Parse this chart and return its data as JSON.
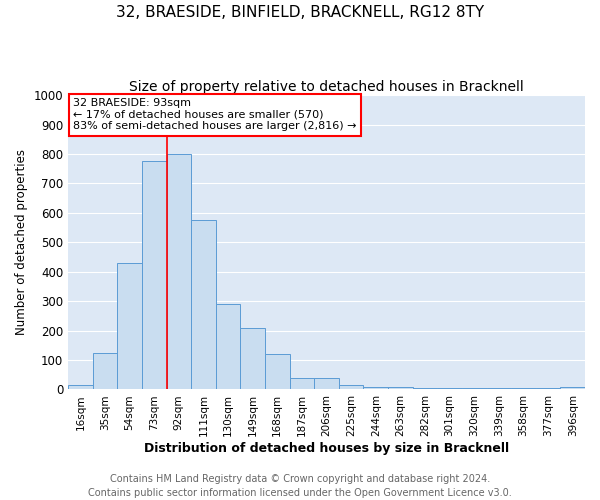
{
  "title": "32, BRAESIDE, BINFIELD, BRACKNELL, RG12 8TY",
  "subtitle": "Size of property relative to detached houses in Bracknell",
  "xlabel": "Distribution of detached houses by size in Bracknell",
  "ylabel": "Number of detached properties",
  "bar_labels": [
    "16sqm",
    "35sqm",
    "54sqm",
    "73sqm",
    "92sqm",
    "111sqm",
    "130sqm",
    "149sqm",
    "168sqm",
    "187sqm",
    "206sqm",
    "225sqm",
    "244sqm",
    "263sqm",
    "282sqm",
    "301sqm",
    "320sqm",
    "339sqm",
    "358sqm",
    "377sqm",
    "396sqm"
  ],
  "bar_values": [
    15,
    125,
    430,
    775,
    800,
    575,
    290,
    210,
    120,
    40,
    40,
    15,
    10,
    10,
    5,
    5,
    5,
    5,
    5,
    5,
    10
  ],
  "bar_color": "#c9ddf0",
  "bar_edge_color": "#5b9bd5",
  "vline_x_index": 4,
  "vline_color": "red",
  "annotation_title": "32 BRAESIDE: 93sqm",
  "annotation_line1": "← 17% of detached houses are smaller (570)",
  "annotation_line2": "83% of semi-detached houses are larger (2,816) →",
  "annotation_box_color": "red",
  "ylim": [
    0,
    1000
  ],
  "yticks": [
    0,
    100,
    200,
    300,
    400,
    500,
    600,
    700,
    800,
    900,
    1000
  ],
  "footer_line1": "Contains HM Land Registry data © Crown copyright and database right 2024.",
  "footer_line2": "Contains public sector information licensed under the Open Government Licence v3.0.",
  "fig_bg_color": "#ffffff",
  "plot_bg_color": "#dde8f5",
  "grid_color": "#ffffff",
  "title_fontsize": 11,
  "subtitle_fontsize": 10,
  "footer_fontsize": 7
}
